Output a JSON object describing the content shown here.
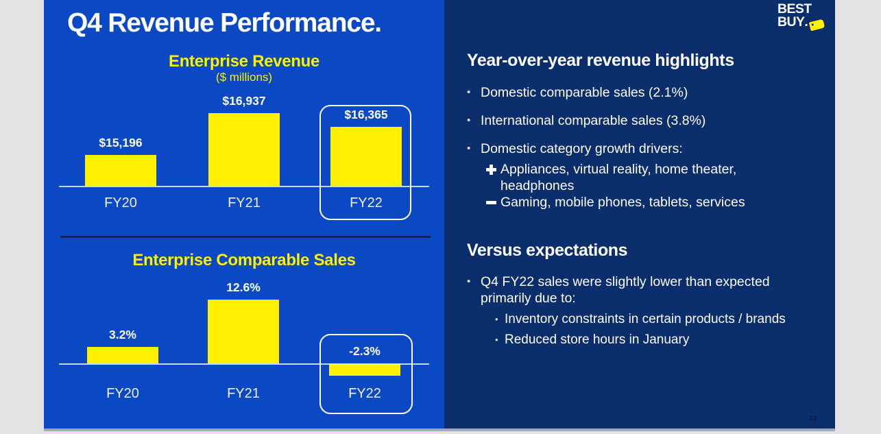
{
  "slide": {
    "title": "Q4 Revenue Performance.",
    "page_number": "13",
    "colors": {
      "brand_blue": "#0a48c4",
      "dark_navy": "#0a2d6c",
      "brand_yellow": "#fff000",
      "page_background": "#e3e3e3"
    },
    "logo": {
      "line1": "BEST",
      "line2": "BUY",
      "period": ".",
      "icon": "price-tag-icon"
    }
  },
  "chart_data": [
    {
      "type": "bar",
      "title": "Enterprise Revenue",
      "subtitle": "($ millions)",
      "categories": [
        "FY20",
        "FY21",
        "FY22"
      ],
      "values": [
        15196,
        16937,
        16365
      ],
      "data_labels": [
        "$15,196",
        "$16,937",
        "$16,365"
      ],
      "highlight_category": "FY22",
      "bar_color": "#fff000",
      "axis_baseline": 13900,
      "ylim": [
        13900,
        16937
      ],
      "grid": false,
      "legend": "none"
    },
    {
      "type": "bar",
      "title": "Enterprise Comparable Sales",
      "subtitle": "",
      "categories": [
        "FY20",
        "FY21",
        "FY22"
      ],
      "values": [
        3.2,
        12.6,
        -2.3
      ],
      "data_labels": [
        "3.2%",
        "12.6%",
        "-2.3%"
      ],
      "highlight_category": "FY22",
      "bar_color": "#fff000",
      "axis_baseline": 0,
      "ylim": [
        0,
        12.6
      ],
      "grid": false,
      "legend": "none"
    }
  ],
  "right_panel": {
    "bullet_glyph": "•",
    "section1": {
      "heading": "Year-over-year revenue highlights",
      "bullets": [
        "Domestic comparable sales (2.1%)",
        "International comparable sales (3.8%)",
        "Domestic category growth drivers:"
      ],
      "growth_positive_icon": "plus-icon",
      "growth_positive": "Appliances, virtual reality, home theater, headphones",
      "growth_negative_icon": "minus-icon",
      "growth_negative": "Gaming, mobile phones, tablets, services"
    },
    "section2": {
      "heading": "Versus expectations",
      "bullet": "Q4 FY22 sales were slightly lower than expected primarily due to:",
      "sub_bullets": [
        "Inventory constraints in certain products / brands",
        "Reduced store hours in January"
      ]
    }
  }
}
